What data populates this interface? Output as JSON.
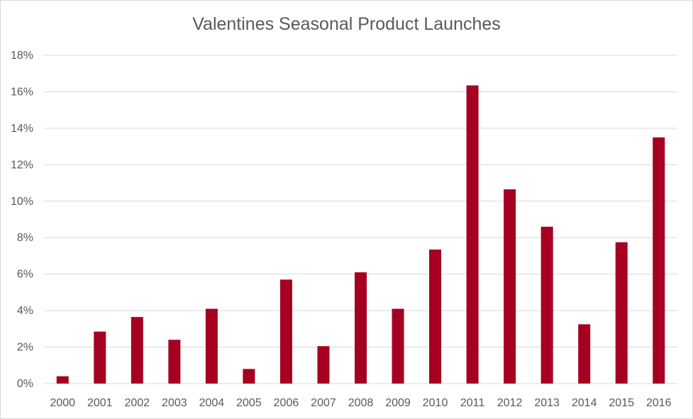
{
  "chart_data": {
    "type": "bar",
    "title": "Valentines Seasonal Product Launches",
    "xlabel": "",
    "ylabel": "",
    "categories": [
      "2000",
      "2001",
      "2002",
      "2003",
      "2004",
      "2005",
      "2006",
      "2007",
      "2008",
      "2009",
      "2010",
      "2011",
      "2012",
      "2013",
      "2014",
      "2015",
      "2016"
    ],
    "values": [
      0.4,
      2.85,
      3.65,
      2.4,
      4.1,
      0.8,
      5.7,
      2.05,
      6.1,
      4.1,
      7.35,
      16.35,
      10.65,
      8.6,
      3.25,
      7.75,
      13.5
    ],
    "value_format": "percent",
    "ylim": [
      0,
      18
    ],
    "yticks": [
      "0%",
      "2%",
      "4%",
      "6%",
      "8%",
      "10%",
      "12%",
      "14%",
      "16%",
      "18%"
    ],
    "ytick_values": [
      0,
      2,
      4,
      6,
      8,
      10,
      12,
      14,
      16,
      18
    ],
    "grid": true,
    "legend": "none",
    "bar_color": "#a50021",
    "grid_color": "#d9d9d9",
    "text_color": "#595959"
  }
}
